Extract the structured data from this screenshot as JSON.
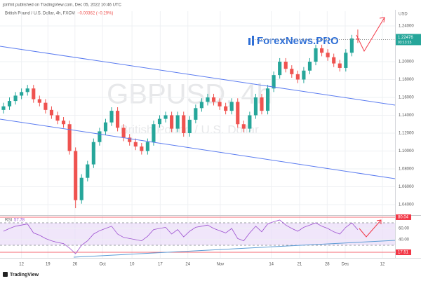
{
  "header": {
    "publisher": "jonfmt published on TradingView.com, Dec 05, 2022 10:46 UTC",
    "symbol_line": "British Pound / U.S. Dollar, 4h, FXCM",
    "change": "−0.00362 (−0.29%)",
    "watermark_symbol": "GBPUSD, 4h",
    "watermark_name": "British Pound / U.S. Dollar",
    "brand": "ForexNews.PRO",
    "currency": "USD",
    "countdown": "03:13:15",
    "footer": "TradingView"
  },
  "chart_data": [
    {
      "type": "candlestick",
      "x": [
        0,
        1,
        2,
        3,
        4,
        5,
        6,
        7,
        8,
        9,
        10,
        11,
        12,
        13,
        14,
        15,
        16,
        17,
        18,
        19,
        20,
        21,
        22,
        23,
        24,
        25,
        26,
        27,
        28,
        29,
        30,
        31,
        32,
        33,
        34,
        35,
        36,
        37,
        38,
        39,
        40,
        41,
        42,
        43,
        44,
        45,
        46,
        47,
        48,
        49,
        50,
        51,
        52,
        53,
        54,
        55,
        56,
        57,
        58,
        59
      ],
      "open": [
        1.146,
        1.15,
        1.156,
        1.162,
        1.166,
        1.17,
        1.158,
        1.154,
        1.146,
        1.14,
        1.134,
        1.13,
        1.1,
        1.045,
        1.07,
        1.085,
        1.11,
        1.122,
        1.132,
        1.145,
        1.126,
        1.115,
        1.11,
        1.105,
        1.1,
        1.11,
        1.13,
        1.136,
        1.14,
        1.125,
        1.14,
        1.12,
        1.135,
        1.148,
        1.155,
        1.16,
        1.155,
        1.15,
        1.145,
        1.155,
        1.13,
        1.125,
        1.14,
        1.16,
        1.145,
        1.17,
        1.185,
        1.2,
        1.192,
        1.186,
        1.18,
        1.19,
        1.2,
        1.215,
        1.21,
        1.205,
        1.198,
        1.193,
        1.21,
        1.226
      ],
      "high": [
        1.154,
        1.16,
        1.166,
        1.17,
        1.174,
        1.174,
        1.162,
        1.158,
        1.15,
        1.144,
        1.138,
        1.134,
        1.104,
        1.074,
        1.089,
        1.114,
        1.126,
        1.136,
        1.149,
        1.149,
        1.13,
        1.119,
        1.114,
        1.109,
        1.114,
        1.134,
        1.14,
        1.144,
        1.144,
        1.144,
        1.144,
        1.139,
        1.152,
        1.159,
        1.164,
        1.164,
        1.159,
        1.154,
        1.159,
        1.159,
        1.134,
        1.144,
        1.164,
        1.164,
        1.174,
        1.189,
        1.204,
        1.204,
        1.196,
        1.19,
        1.194,
        1.204,
        1.219,
        1.219,
        1.214,
        1.209,
        1.202,
        1.214,
        1.23,
        1.236
      ],
      "low": [
        1.142,
        1.146,
        1.152,
        1.158,
        1.162,
        1.154,
        1.15,
        1.142,
        1.136,
        1.13,
        1.126,
        1.096,
        1.036,
        1.041,
        1.066,
        1.081,
        1.106,
        1.118,
        1.128,
        1.122,
        1.111,
        1.106,
        1.101,
        1.096,
        1.096,
        1.106,
        1.126,
        1.132,
        1.121,
        1.121,
        1.116,
        1.116,
        1.131,
        1.144,
        1.151,
        1.151,
        1.146,
        1.141,
        1.141,
        1.126,
        1.121,
        1.121,
        1.136,
        1.141,
        1.141,
        1.166,
        1.181,
        1.188,
        1.182,
        1.176,
        1.176,
        1.186,
        1.196,
        1.206,
        1.201,
        1.194,
        1.189,
        1.189,
        1.206,
        1.221
      ],
      "close": [
        1.15,
        1.156,
        1.162,
        1.166,
        1.17,
        1.158,
        1.154,
        1.146,
        1.14,
        1.134,
        1.13,
        1.1,
        1.045,
        1.07,
        1.085,
        1.11,
        1.122,
        1.132,
        1.145,
        1.126,
        1.115,
        1.11,
        1.105,
        1.1,
        1.11,
        1.13,
        1.136,
        1.14,
        1.125,
        1.14,
        1.12,
        1.135,
        1.148,
        1.155,
        1.16,
        1.155,
        1.15,
        1.145,
        1.155,
        1.13,
        1.125,
        1.14,
        1.16,
        1.145,
        1.17,
        1.185,
        1.2,
        1.192,
        1.186,
        1.18,
        1.19,
        1.2,
        1.215,
        1.21,
        1.205,
        1.198,
        1.193,
        1.21,
        1.226,
        1.22476
      ],
      "up_color": "#26a69a",
      "down_color": "#ef5350",
      "xlim": [
        -0.58,
        65.2
      ],
      "ylim": [
        1.0282,
        1.2565
      ],
      "xticks": [
        {
          "value": 3.0,
          "label": "12"
        },
        {
          "value": 7.4,
          "label": "19"
        },
        {
          "value": 11.9,
          "label": "26"
        },
        {
          "value": 16.5,
          "label": "Oct"
        },
        {
          "value": 21.4,
          "label": "10"
        },
        {
          "value": 26.1,
          "label": "17"
        },
        {
          "value": 30.7,
          "label": "24"
        },
        {
          "value": 36.1,
          "label": "Nov"
        },
        {
          "value": 44.6,
          "label": "14"
        },
        {
          "value": 49.3,
          "label": "21"
        },
        {
          "value": 53.9,
          "label": "28"
        },
        {
          "value": 56.9,
          "label": "Dec"
        },
        {
          "value": 63.1,
          "label": "12"
        }
      ],
      "yticks": [
        {
          "value": 1.24,
          "label": "1.24000"
        },
        {
          "value": 1.2,
          "label": "1.20000"
        },
        {
          "value": 1.18,
          "label": "1.18000"
        },
        {
          "value": 1.16,
          "label": "1.16000"
        },
        {
          "value": 1.14,
          "label": "1.14000"
        },
        {
          "value": 1.12,
          "label": "1.12000"
        },
        {
          "value": 1.1,
          "label": "1.10000"
        },
        {
          "value": 1.08,
          "label": "1.08000"
        },
        {
          "value": 1.06,
          "label": "1.06000"
        },
        {
          "value": 1.04,
          "label": "1.04000"
        }
      ],
      "grid": true,
      "trendlines": [
        {
          "color": "#5b7cf0",
          "x": [
            -0.58,
            65.2
          ],
          "y": [
            1.2173,
            1.1514
          ]
        },
        {
          "color": "#5b7cf0",
          "x": [
            -0.58,
            65.2
          ],
          "y": [
            1.1357,
            1.069
          ]
        }
      ]
    },
    {
      "type": "line",
      "series": [
        {
          "name": "RSI",
          "color": "#9c4fd0",
          "values": [
            55,
            60,
            64,
            66,
            68,
            52,
            48,
            42,
            38,
            35,
            33,
            25,
            15,
            30,
            38,
            50,
            56,
            60,
            64,
            50,
            44,
            42,
            40,
            38,
            46,
            58,
            60,
            62,
            50,
            58,
            45,
            55,
            62,
            64,
            66,
            60,
            56,
            52,
            60,
            42,
            38,
            52,
            64,
            54,
            68,
            72,
            75,
            66,
            60,
            55,
            62,
            66,
            70,
            64,
            60,
            54,
            50,
            62,
            70,
            57.78
          ]
        }
      ],
      "ylim": [
        7.5,
        82.5
      ],
      "yticks": [
        {
          "value": 60,
          "label": "60.00"
        },
        {
          "value": 40,
          "label": "40.00"
        }
      ],
      "band": [
        70,
        30
      ],
      "band_color": "#eadcf8",
      "markers": [
        80.04,
        17.51
      ],
      "marker_color": "#f23645"
    }
  ]
}
